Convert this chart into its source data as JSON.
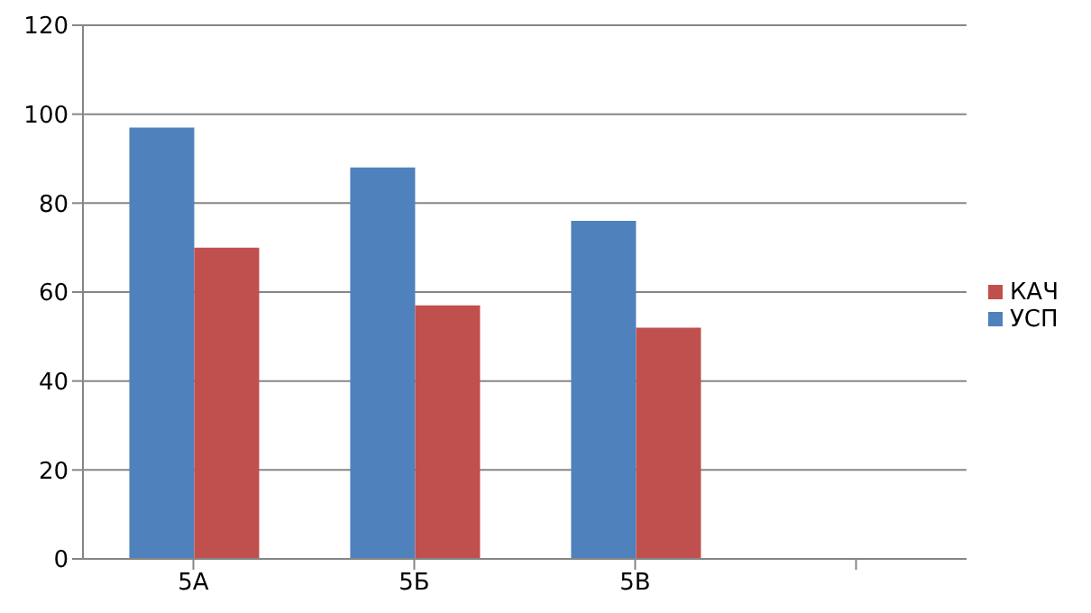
{
  "chart_data": {
    "type": "bar",
    "categories": [
      "5А",
      "5Б",
      "5В",
      null
    ],
    "series": [
      {
        "name": "УСП",
        "color": "#4f81bd",
        "values": [
          97,
          88,
          76,
          null
        ]
      },
      {
        "name": "КАЧ",
        "color": "#c0504d",
        "values": [
          70,
          57,
          52,
          null
        ]
      }
    ],
    "ylim": [
      0,
      120
    ],
    "yticks": [
      0,
      20,
      40,
      60,
      80,
      100,
      120
    ],
    "grid": "y",
    "legend": "right"
  }
}
